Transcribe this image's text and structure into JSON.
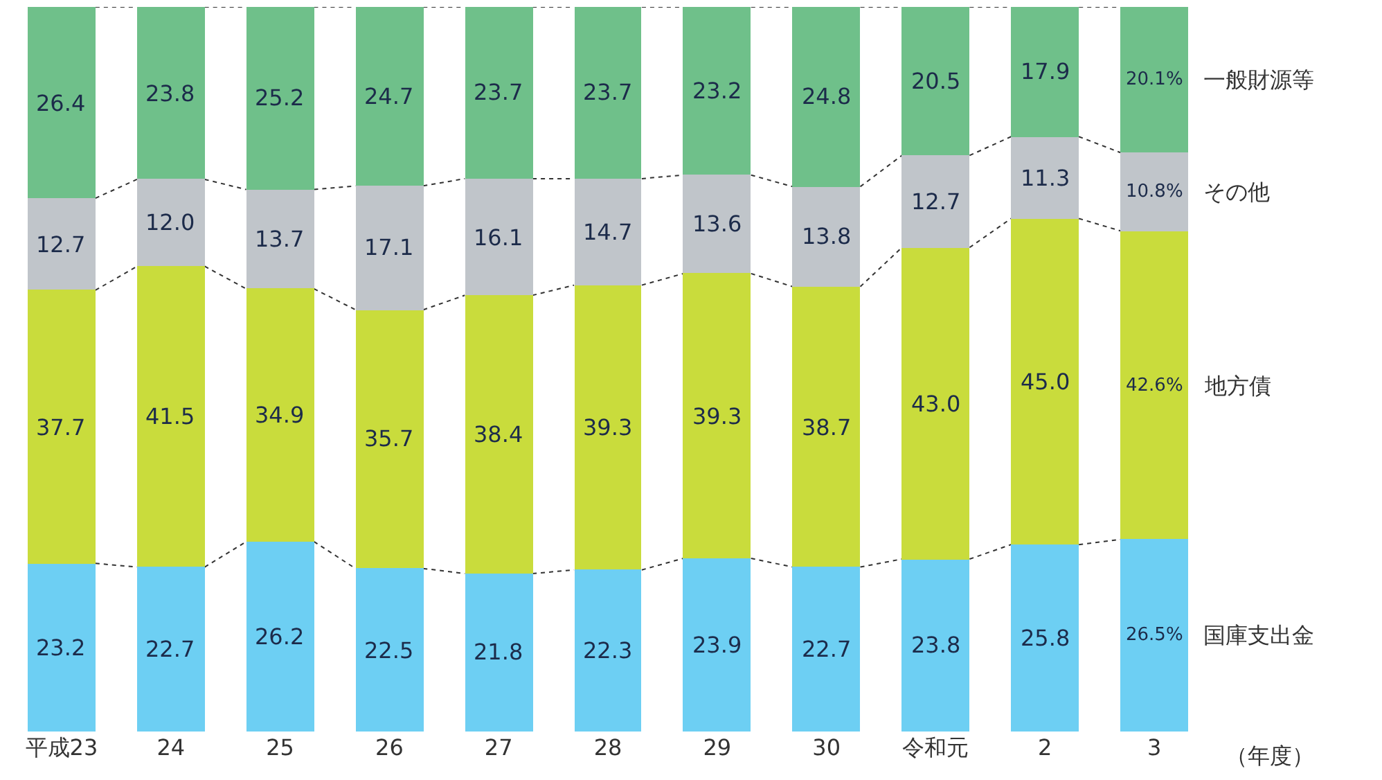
{
  "chart_data": {
    "type": "bar",
    "stacked": true,
    "xlabel": "（年度）",
    "ylim": [
      0,
      100
    ],
    "tick_labels": "x",
    "legend": false,
    "categories": [
      "平成23",
      "24",
      "25",
      "26",
      "27",
      "28",
      "29",
      "30",
      "令和元",
      "2",
      "3"
    ],
    "series": [
      {
        "name": "国庫支出金",
        "color": "#6dcff3",
        "values": [
          23.2,
          22.7,
          26.2,
          22.5,
          21.8,
          22.3,
          23.9,
          22.7,
          23.8,
          25.8,
          26.5
        ],
        "value_labels": [
          "23.2",
          "22.7",
          "26.2",
          "22.5",
          "21.8",
          "22.3",
          "23.9",
          "22.7",
          "23.8",
          "25.8",
          "26.5%"
        ]
      },
      {
        "name": "地方債",
        "color": "#c9dc3c",
        "values": [
          37.7,
          41.5,
          34.9,
          35.7,
          38.4,
          39.3,
          39.3,
          38.7,
          43.0,
          45.0,
          42.6
        ],
        "value_labels": [
          "37.7",
          "41.5",
          "34.9",
          "35.7",
          "38.4",
          "39.3",
          "39.3",
          "38.7",
          "43.0",
          "45.0",
          "42.6%"
        ]
      },
      {
        "name": "その他",
        "color": "#c0c5ca",
        "values": [
          12.7,
          12.0,
          13.7,
          17.1,
          16.1,
          14.7,
          13.6,
          13.8,
          12.7,
          11.3,
          10.8
        ],
        "value_labels": [
          "12.7",
          "12.0",
          "13.7",
          "17.1",
          "16.1",
          "14.7",
          "13.6",
          "13.8",
          "12.7",
          "11.3",
          "10.8%"
        ]
      },
      {
        "name": "一般財源等",
        "color": "#6fc08a",
        "values": [
          26.4,
          23.8,
          25.2,
          24.7,
          23.7,
          23.7,
          23.2,
          24.8,
          20.5,
          17.9,
          20.1
        ],
        "value_labels": [
          "26.4",
          "23.8",
          "25.2",
          "24.7",
          "23.7",
          "23.7",
          "23.2",
          "24.8",
          "20.5",
          "17.9",
          "20.1%"
        ]
      }
    ]
  }
}
